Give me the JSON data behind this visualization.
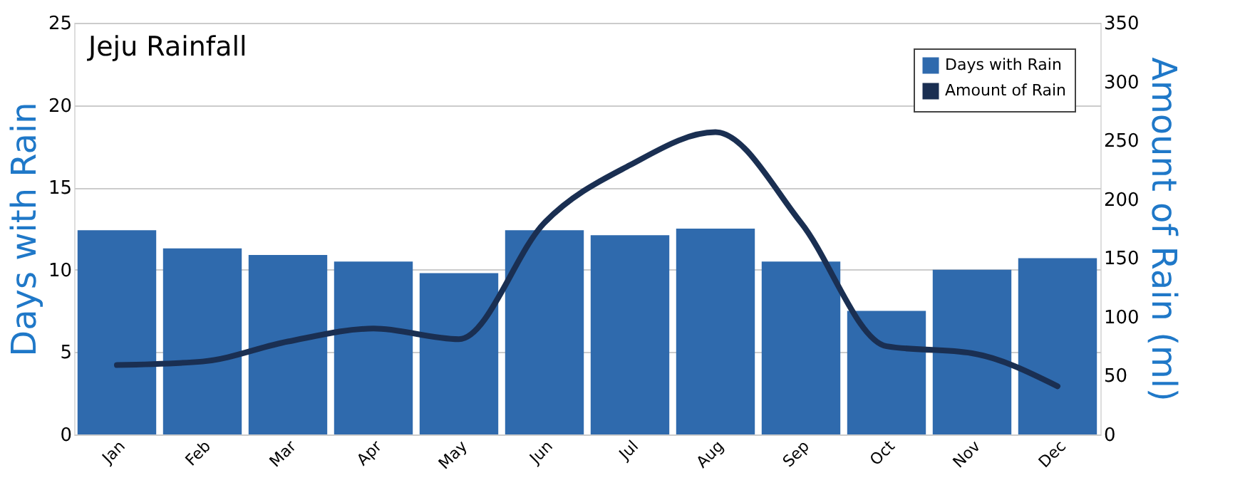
{
  "chart_data": {
    "type": "bar",
    "title": "Jeju Rainfall",
    "ylabel": "Days with Rain",
    "y2label": "Amount of Rain (ml)",
    "categories": [
      "Jan",
      "Feb",
      "Mar",
      "Apr",
      "May",
      "Jun",
      "Jul",
      "Aug",
      "Sep",
      "Oct",
      "Nov",
      "Dec"
    ],
    "series": [
      {
        "name": "Days with Rain",
        "color": "#2f6aad",
        "values": [
          12.4,
          11.3,
          10.9,
          10.5,
          9.8,
          12.4,
          12.1,
          12.5,
          10.5,
          7.5,
          10.0,
          10.7
        ]
      },
      {
        "name": "Amount of Rain",
        "type": "line",
        "axis": "y2",
        "color": "#1a2f52",
        "values": [
          59,
          62,
          79,
          90,
          81,
          180,
          229,
          257,
          180,
          75,
          69,
          41
        ]
      }
    ],
    "ylim": [
      0,
      25
    ],
    "yticks": [
      0,
      5,
      10,
      15,
      20,
      25
    ],
    "y2lim": [
      0,
      350
    ],
    "y2ticks": [
      0,
      50,
      100,
      150,
      200,
      250,
      300,
      350
    ],
    "grid": "y",
    "legend": "top right"
  }
}
